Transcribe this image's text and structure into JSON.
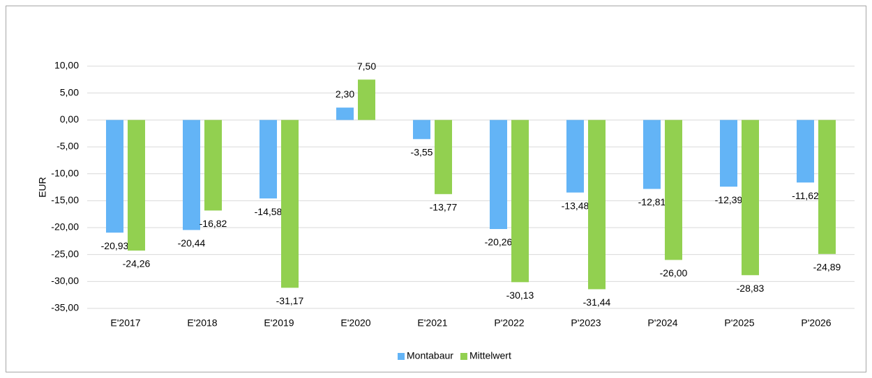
{
  "chart_data": {
    "type": "bar",
    "y_axis_label": "EUR",
    "categories": [
      "E'2017",
      "E'2018",
      "E'2019",
      "E'2020",
      "E'2021",
      "P'2022",
      "P'2023",
      "P'2024",
      "P'2025",
      "P'2026"
    ],
    "series": [
      {
        "name": "Montabaur",
        "color": "#63b4f6",
        "values": [
          -20.93,
          -20.44,
          -14.58,
          2.3,
          -3.55,
          -20.26,
          -13.48,
          -12.81,
          -12.39,
          -11.62
        ],
        "value_labels": [
          "-20,93",
          "-20,44",
          "-14,58",
          "2,30",
          "-3,55",
          "-20,26",
          "-13,48",
          "-12,81",
          "-12,39",
          "-11,62"
        ]
      },
      {
        "name": "Mittelwert",
        "color": "#92d050",
        "values": [
          -24.26,
          -16.82,
          -31.17,
          7.5,
          -13.77,
          -30.13,
          -31.44,
          -26.0,
          -28.83,
          -24.89
        ],
        "value_labels": [
          "-24,26",
          "-16,82",
          "-31,17",
          "7,50",
          "-13,77",
          "-30,13",
          "-31,44",
          "-26,00",
          "-28,83",
          "-24,89"
        ]
      }
    ],
    "ylim": [
      -35,
      10
    ],
    "yticks": [
      {
        "value": -35,
        "label": "-35,00"
      },
      {
        "value": -30,
        "label": "-30,00"
      },
      {
        "value": -25,
        "label": "-25,00"
      },
      {
        "value": -20,
        "label": "-20,00"
      },
      {
        "value": -15,
        "label": "-15,00"
      },
      {
        "value": -10,
        "label": "-10,00"
      },
      {
        "value": -5,
        "label": "-5,00"
      },
      {
        "value": 0,
        "label": "0,00"
      },
      {
        "value": 5,
        "label": "5,00"
      },
      {
        "value": 10,
        "label": "10,00"
      }
    ],
    "grid": true,
    "legend": "bottom"
  }
}
